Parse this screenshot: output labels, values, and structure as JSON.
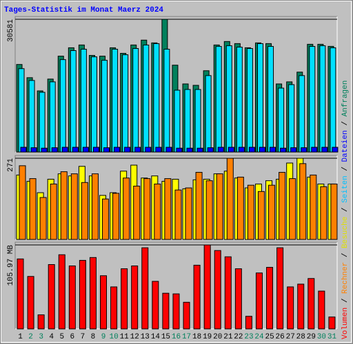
{
  "chart_data": [
    {
      "type": "bar",
      "title": "Tages-Statistik im Monat Maerz 2024",
      "categories": [
        "1",
        "2",
        "3",
        "4",
        "5",
        "6",
        "7",
        "8",
        "9",
        "10",
        "11",
        "12",
        "13",
        "14",
        "15",
        "16",
        "17",
        "18",
        "19",
        "20",
        "21",
        "22",
        "23",
        "24",
        "25",
        "26",
        "27",
        "28",
        "29",
        "30",
        "31"
      ],
      "category_colors": [
        "#000000",
        "#00805c",
        "#00805c",
        "#000000",
        "#000000",
        "#000000",
        "#000000",
        "#000000",
        "#00805c",
        "#00805c",
        "#000000",
        "#000000",
        "#000000",
        "#000000",
        "#000000",
        "#00805c",
        "#00805c",
        "#000000",
        "#000000",
        "#000000",
        "#000000",
        "#000000",
        "#00805c",
        "#00805c",
        "#000000",
        "#000000",
        "#000000",
        "#000000",
        "#000000",
        "#00805c",
        "#00805c"
      ],
      "ylim": [
        0,
        30581
      ],
      "yticks": [
        30581
      ],
      "series": [
        {
          "name": "Anfragen",
          "color": "#00805c",
          "values": [
            20170,
            17130,
            14090,
            16810,
            22090,
            24020,
            24660,
            22260,
            22090,
            24020,
            22740,
            24660,
            25780,
            25140,
            30581,
            20010,
            15690,
            15370,
            18730,
            24660,
            25460,
            24980,
            24020,
            25140,
            24980,
            15690,
            16170,
            18410,
            24820,
            24820,
            24340
          ]
        },
        {
          "name": "Seiten",
          "color": "#00e0ff",
          "values": [
            19210,
            16490,
            13770,
            16170,
            21290,
            23370,
            23690,
            21930,
            21130,
            23690,
            22410,
            23850,
            24650,
            24970,
            23690,
            14250,
            14410,
            14410,
            17610,
            24330,
            24490,
            24170,
            23850,
            24970,
            24330,
            14730,
            15530,
            17610,
            24330,
            24490,
            24010
          ]
        },
        {
          "name": "Dateien",
          "color": "#0000ff",
          "values": [
            1100,
            1000,
            900,
            1000,
            1100,
            1100,
            1100,
            1100,
            1000,
            1100,
            1100,
            1100,
            1100,
            1100,
            1100,
            900,
            900,
            900,
            1000,
            1100,
            1100,
            1100,
            1100,
            1100,
            1100,
            900,
            1000,
            1000,
            1100,
            1100,
            1100
          ]
        }
      ]
    },
    {
      "type": "bar",
      "ylim": [
        0,
        271
      ],
      "yticks": [
        271
      ],
      "series": [
        {
          "name": "Besuche",
          "color": "#ffff00",
          "values": [
            215,
            194,
            156,
            201,
            219,
            212,
            244,
            212,
            147,
            156,
            228,
            248,
            205,
            212,
            194,
            201,
            169,
            199,
            201,
            219,
            228,
            205,
            172,
            185,
            196,
            201,
            255,
            271,
            208,
            185,
            185
          ]
        },
        {
          "name": "Rechner",
          "color": "#ff8000",
          "values": [
            246,
            203,
            140,
            185,
            226,
            219,
            190,
            219,
            135,
            154,
            205,
            178,
            203,
            185,
            203,
            165,
            172,
            224,
            196,
            219,
            271,
            208,
            181,
            160,
            181,
            224,
            203,
            253,
            215,
            176,
            185
          ]
        }
      ]
    },
    {
      "type": "bar",
      "ylim": [
        0,
        105.97
      ],
      "yticks": [
        {
          "value": 105.97,
          "label": "105.97 MB"
        }
      ],
      "series": [
        {
          "name": "Volumen",
          "color": "#ff0000",
          "values": [
            88.3,
            66.2,
            17.7,
            81.2,
            93.6,
            79.5,
            86.5,
            90.1,
            67.1,
            53.0,
            75.9,
            79.5,
            102.4,
            60.0,
            45.0,
            44.2,
            33.6,
            80.4,
            105.97,
            98.9,
            91.0,
            75.9,
            15.9,
            70.6,
            77.7,
            102.4,
            53.0,
            56.5,
            63.6,
            47.7,
            15.0
          ]
        }
      ]
    }
  ],
  "legend_separator": "/"
}
